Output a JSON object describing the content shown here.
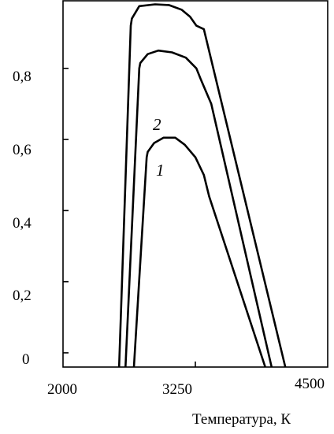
{
  "chart_data": {
    "type": "line",
    "title": "",
    "xlabel": "Температура, К",
    "ylabel": "",
    "xlim": [
      2000,
      4500
    ],
    "ylim": [
      -0.04,
      0.99
    ],
    "x_tick_labels": [
      "2000",
      "3250",
      "4500"
    ],
    "y_tick_labels": [
      "0",
      "0,2",
      "0,4",
      "0,6",
      "0,8"
    ],
    "y_tick_values": [
      0,
      0.2,
      0.4,
      0.6,
      0.8
    ],
    "grid": false,
    "series": [
      {
        "name": "1",
        "points": [
          [
            2670,
            -0.04
          ],
          [
            2790,
            0.55
          ],
          [
            2800,
            0.565
          ],
          [
            2860,
            0.59
          ],
          [
            2950,
            0.605
          ],
          [
            3060,
            0.605
          ],
          [
            3150,
            0.585
          ],
          [
            3250,
            0.55
          ],
          [
            3330,
            0.5
          ],
          [
            3380,
            0.44
          ],
          [
            3910,
            -0.04
          ]
        ]
      },
      {
        "name": "2",
        "points": [
          [
            2590,
            -0.04
          ],
          [
            2720,
            0.8
          ],
          [
            2730,
            0.815
          ],
          [
            2800,
            0.84
          ],
          [
            2900,
            0.85
          ],
          [
            3030,
            0.845
          ],
          [
            3160,
            0.83
          ],
          [
            3260,
            0.8
          ],
          [
            3300,
            0.77
          ],
          [
            3400,
            0.7
          ],
          [
            3970,
            -0.04
          ]
        ]
      },
      {
        "name": "",
        "points": [
          [
            2530,
            -0.04
          ],
          [
            2640,
            0.92
          ],
          [
            2650,
            0.94
          ],
          [
            2720,
            0.975
          ],
          [
            2870,
            0.98
          ],
          [
            3000,
            0.978
          ],
          [
            3120,
            0.965
          ],
          [
            3200,
            0.945
          ],
          [
            3260,
            0.92
          ],
          [
            3330,
            0.91
          ],
          [
            4100,
            -0.04
          ]
        ]
      }
    ]
  }
}
